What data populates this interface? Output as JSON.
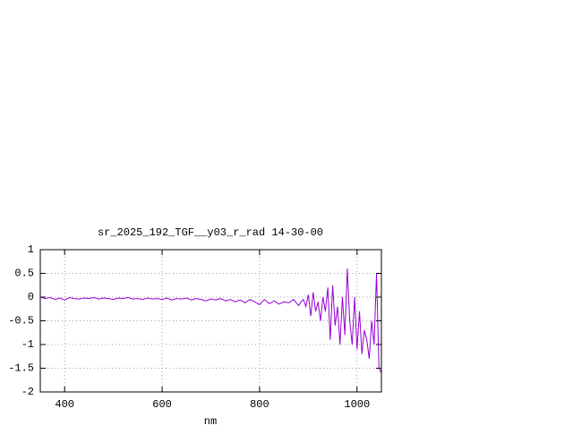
{
  "chart_data": {
    "type": "line",
    "title": "sr_2025_192_TGF__y03_r_rad 14-30-00",
    "x_label": "nm",
    "xlim": [
      350,
      1050
    ],
    "xticks": [
      400,
      600,
      800,
      1000
    ],
    "ylim": [
      -2,
      1
    ],
    "yticks": [
      1,
      0.5,
      0,
      -0.5,
      -1,
      -1.5,
      -2
    ],
    "grid": true,
    "series": [
      {
        "color": "#9400d3",
        "x": [
          350,
          360,
          370,
          380,
          390,
          400,
          410,
          420,
          430,
          440,
          450,
          460,
          470,
          480,
          490,
          500,
          510,
          520,
          530,
          540,
          550,
          560,
          570,
          580,
          590,
          600,
          610,
          620,
          630,
          640,
          650,
          660,
          670,
          680,
          690,
          700,
          710,
          720,
          730,
          740,
          750,
          760,
          770,
          780,
          790,
          800,
          810,
          820,
          830,
          840,
          850,
          860,
          870,
          880,
          885,
          890,
          895,
          900,
          905,
          910,
          915,
          920,
          925,
          930,
          935,
          940,
          945,
          950,
          955,
          960,
          965,
          970,
          975,
          980,
          985,
          990,
          995,
          1000,
          1005,
          1010,
          1015,
          1020,
          1025,
          1030,
          1035,
          1040,
          1045,
          1050
        ],
        "values": [
          0,
          -0.03,
          -0.01,
          -0.05,
          -0.02,
          -0.06,
          -0.01,
          -0.03,
          -0.04,
          -0.02,
          -0.03,
          -0.01,
          -0.04,
          -0.02,
          -0.03,
          -0.05,
          -0.02,
          -0.03,
          -0.01,
          -0.04,
          -0.03,
          -0.05,
          -0.02,
          -0.04,
          -0.03,
          -0.05,
          -0.02,
          -0.06,
          -0.03,
          -0.04,
          -0.02,
          -0.06,
          -0.03,
          -0.05,
          -0.08,
          -0.04,
          -0.06,
          -0.03,
          -0.08,
          -0.05,
          -0.1,
          -0.06,
          -0.12,
          -0.05,
          -0.1,
          -0.16,
          -0.05,
          -0.14,
          -0.08,
          -0.15,
          -0.1,
          -0.12,
          -0.05,
          -0.18,
          -0.1,
          -0.05,
          -0.2,
          0.05,
          -0.4,
          0.1,
          -0.3,
          -0.1,
          -0.5,
          0,
          -0.3,
          0.2,
          -0.9,
          0.25,
          -0.6,
          -0.2,
          -1,
          0,
          -0.8,
          0.6,
          -0.5,
          -1,
          0,
          -1.1,
          -0.3,
          -1.2,
          -0.7,
          -0.9,
          -1.3,
          -0.5,
          -1,
          0.5,
          -1.5,
          -1.6
        ]
      },
      {
        "color": "#000000",
        "x": [
          1040,
          1050,
          1050
        ],
        "values": [
          0.5,
          0.5,
          -1.6
        ]
      }
    ]
  }
}
